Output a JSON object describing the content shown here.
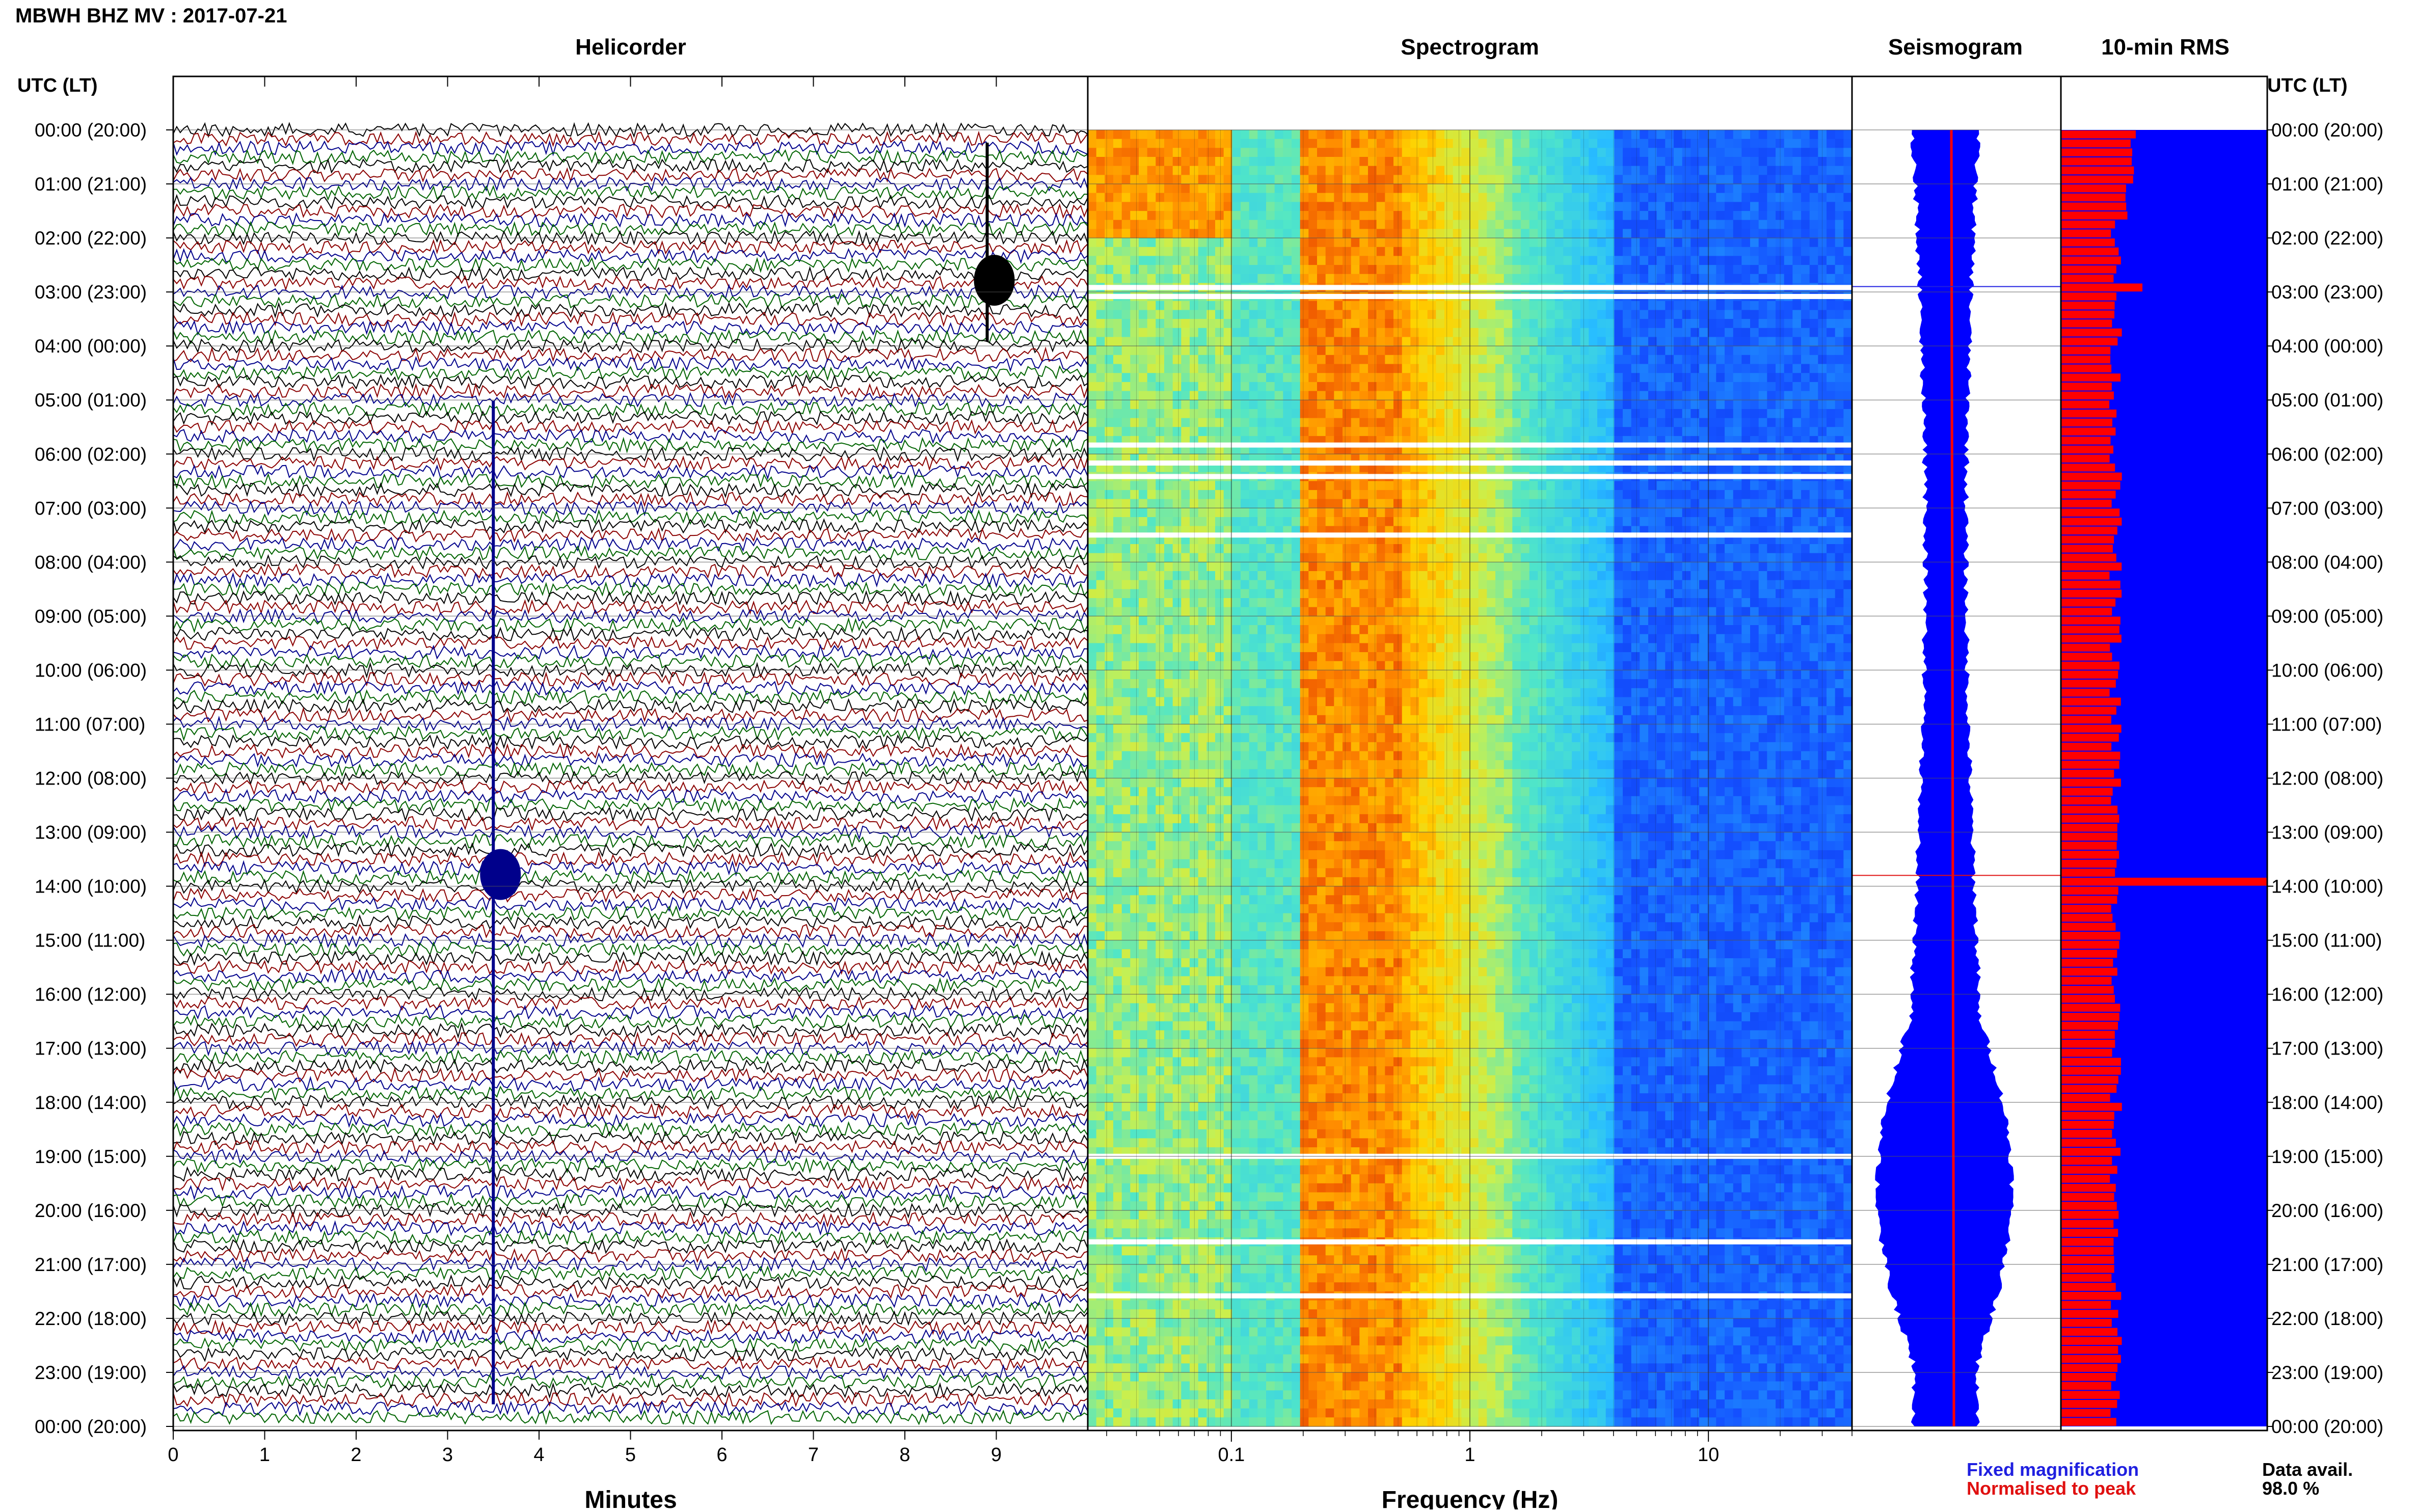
{
  "header": {
    "station_title": "MBWH BHZ MV : 2017-07-21",
    "utc_lt_label": "UTC (LT)"
  },
  "panels": {
    "helicorder": "Helicorder",
    "spectrogram": "Spectrogram",
    "seismogram": "Seismogram",
    "rms": "10-min RMS"
  },
  "time_labels": [
    "00:00 (20:00)",
    "01:00 (21:00)",
    "02:00 (22:00)",
    "03:00 (23:00)",
    "04:00 (00:00)",
    "05:00 (01:00)",
    "06:00 (02:00)",
    "07:00 (03:00)",
    "08:00 (04:00)",
    "09:00 (05:00)",
    "10:00 (06:00)",
    "11:00 (07:00)",
    "12:00 (08:00)",
    "13:00 (09:00)",
    "14:00 (10:00)",
    "15:00 (11:00)",
    "16:00 (12:00)",
    "17:00 (13:00)",
    "18:00 (14:00)",
    "19:00 (15:00)",
    "20:00 (16:00)",
    "21:00 (17:00)",
    "22:00 (18:00)",
    "23:00 (19:00)",
    "00:00 (20:00)"
  ],
  "helicorder_axis": {
    "ticks": [
      "0",
      "1",
      "2",
      "3",
      "4",
      "5",
      "6",
      "7",
      "8",
      "9"
    ],
    "xlabel": "Minutes"
  },
  "spectrogram_axis": {
    "ticks": [
      "0.1",
      "1",
      "10"
    ],
    "xlabel": "Frequency (Hz)"
  },
  "legend": {
    "fixed": "Fixed magnification",
    "normalised": "Normalised to peak",
    "fixed_color": "#1f1fe0",
    "normalised_color": "#e01010"
  },
  "data_avail": {
    "label": "Data avail.",
    "value": "98.0 %"
  },
  "colors": {
    "trace_colors": [
      "#000000",
      "#8b0000",
      "#00008b",
      "#006400"
    ],
    "seismogram_fill": "#0000ff",
    "rms_fill": "#0000ff",
    "rms_bar": "#ff0000"
  },
  "chart_data": [
    {
      "type": "line",
      "title": "Helicorder",
      "xlabel": "Minutes",
      "xlim": [
        0,
        10
      ],
      "rows": 144,
      "row_minutes": 10,
      "events": [
        {
          "time_utc": "02:30",
          "minute": 8.9,
          "note": "large signal"
        },
        {
          "time_utc": "13:30",
          "minute": 3.5,
          "note": "large signal"
        }
      ]
    },
    {
      "type": "heatmap",
      "title": "Spectrogram",
      "xlabel": "Frequency (Hz)",
      "xscale": "log",
      "xlim": [
        0.025,
        40
      ],
      "peak_band_hz": [
        0.2,
        0.5
      ],
      "gaps_utc": [
        "02:55",
        "03:05",
        "05:50",
        "06:10",
        "06:25",
        "07:30",
        "19:00",
        "20:35",
        "21:35"
      ]
    },
    {
      "type": "area",
      "title": "Seismogram",
      "legend": [
        "Fixed magnification",
        "Normalised to peak"
      ]
    },
    {
      "type": "bar",
      "title": "10-min RMS",
      "bars": 144,
      "peak_time_utc": "13:50"
    }
  ]
}
